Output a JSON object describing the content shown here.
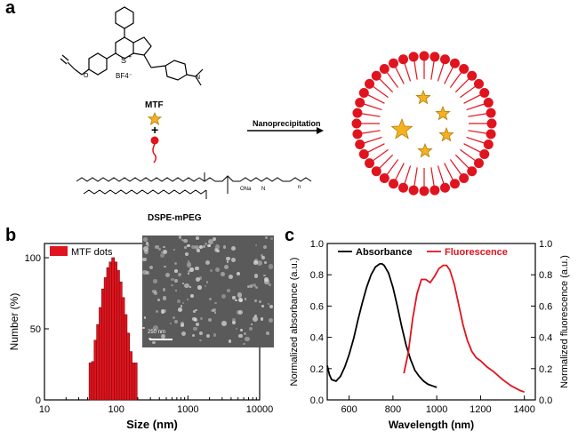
{
  "panels": {
    "a": "a",
    "b": "b",
    "c": "c"
  },
  "scheme": {
    "counterion": "BF4⁻",
    "sulfur": "S",
    "charge": "+",
    "mtf_label": "MTF",
    "plus": "+",
    "arrow_label": "Nanoprecipitation",
    "dspe_label": "DSPE-mPEG",
    "ona": "ONa",
    "nh": "N",
    "n_sub": "n"
  },
  "tem": {
    "scale_label": "250 nm"
  },
  "chart_data": [
    {
      "type": "bar",
      "panel": "b",
      "title": "",
      "xlabel": "Size (nm)",
      "ylabel": "Number (%)",
      "xscale": "log",
      "xlim": [
        10,
        10000
      ],
      "ylim": [
        0,
        110
      ],
      "xticks": [
        "10",
        "100",
        "1000",
        "10000"
      ],
      "yticks": [
        "0",
        "50",
        "100"
      ],
      "legend": [
        "MTF dots"
      ],
      "color": "#e0141e",
      "series": [
        {
          "name": "MTF dots",
          "x": [
            43.8,
            47.5,
            51.5,
            55.8,
            60.5,
            65.6,
            71.1,
            77.1,
            83.6,
            90.6,
            98.2,
            106.5,
            115.4,
            125.1,
            135.6,
            147.0,
            159.4,
            172.8,
            187.3
          ],
          "values": [
            26,
            27,
            42,
            53,
            65,
            78,
            86,
            93,
            97,
            100,
            97,
            91,
            83,
            72,
            60,
            47,
            34,
            26,
            26
          ]
        }
      ]
    },
    {
      "type": "line",
      "panel": "c",
      "title": "",
      "xlabel": "Wavelength (nm)",
      "ylabel": "Normalized absorbance (a.u.)",
      "y2label": "Normalized fluorescence (a.u.)",
      "xlim": [
        500,
        1450
      ],
      "ylim": [
        0,
        1.0
      ],
      "xticks": [
        "600",
        "800",
        "1000",
        "1200",
        "1400"
      ],
      "yticks": [
        "0.0",
        "0.2",
        "0.4",
        "0.6",
        "0.8",
        "1.0"
      ],
      "series": [
        {
          "name": "Absorbance",
          "color": "#000000",
          "axis": "left",
          "x": [
            500,
            510,
            520,
            540,
            560,
            580,
            600,
            620,
            640,
            660,
            680,
            700,
            720,
            740,
            750,
            760,
            780,
            800,
            820,
            840,
            860,
            880,
            900,
            920,
            940,
            960,
            980,
            1000
          ],
          "y": [
            0.22,
            0.16,
            0.13,
            0.12,
            0.15,
            0.21,
            0.29,
            0.39,
            0.51,
            0.62,
            0.72,
            0.8,
            0.85,
            0.87,
            0.87,
            0.86,
            0.81,
            0.72,
            0.6,
            0.47,
            0.35,
            0.26,
            0.19,
            0.15,
            0.12,
            0.1,
            0.09,
            0.08
          ]
        },
        {
          "name": "Fluorescence",
          "color": "#e0141e",
          "axis": "right",
          "x": [
            850,
            870,
            890,
            910,
            930,
            950,
            970,
            990,
            1010,
            1030,
            1045,
            1060,
            1080,
            1100,
            1120,
            1140,
            1160,
            1180,
            1200,
            1230,
            1260,
            1300,
            1340,
            1380,
            1400
          ],
          "y": [
            0.17,
            0.3,
            0.52,
            0.68,
            0.77,
            0.77,
            0.75,
            0.79,
            0.84,
            0.86,
            0.86,
            0.83,
            0.74,
            0.61,
            0.48,
            0.38,
            0.31,
            0.27,
            0.25,
            0.21,
            0.18,
            0.13,
            0.09,
            0.06,
            0.05
          ]
        }
      ]
    }
  ]
}
